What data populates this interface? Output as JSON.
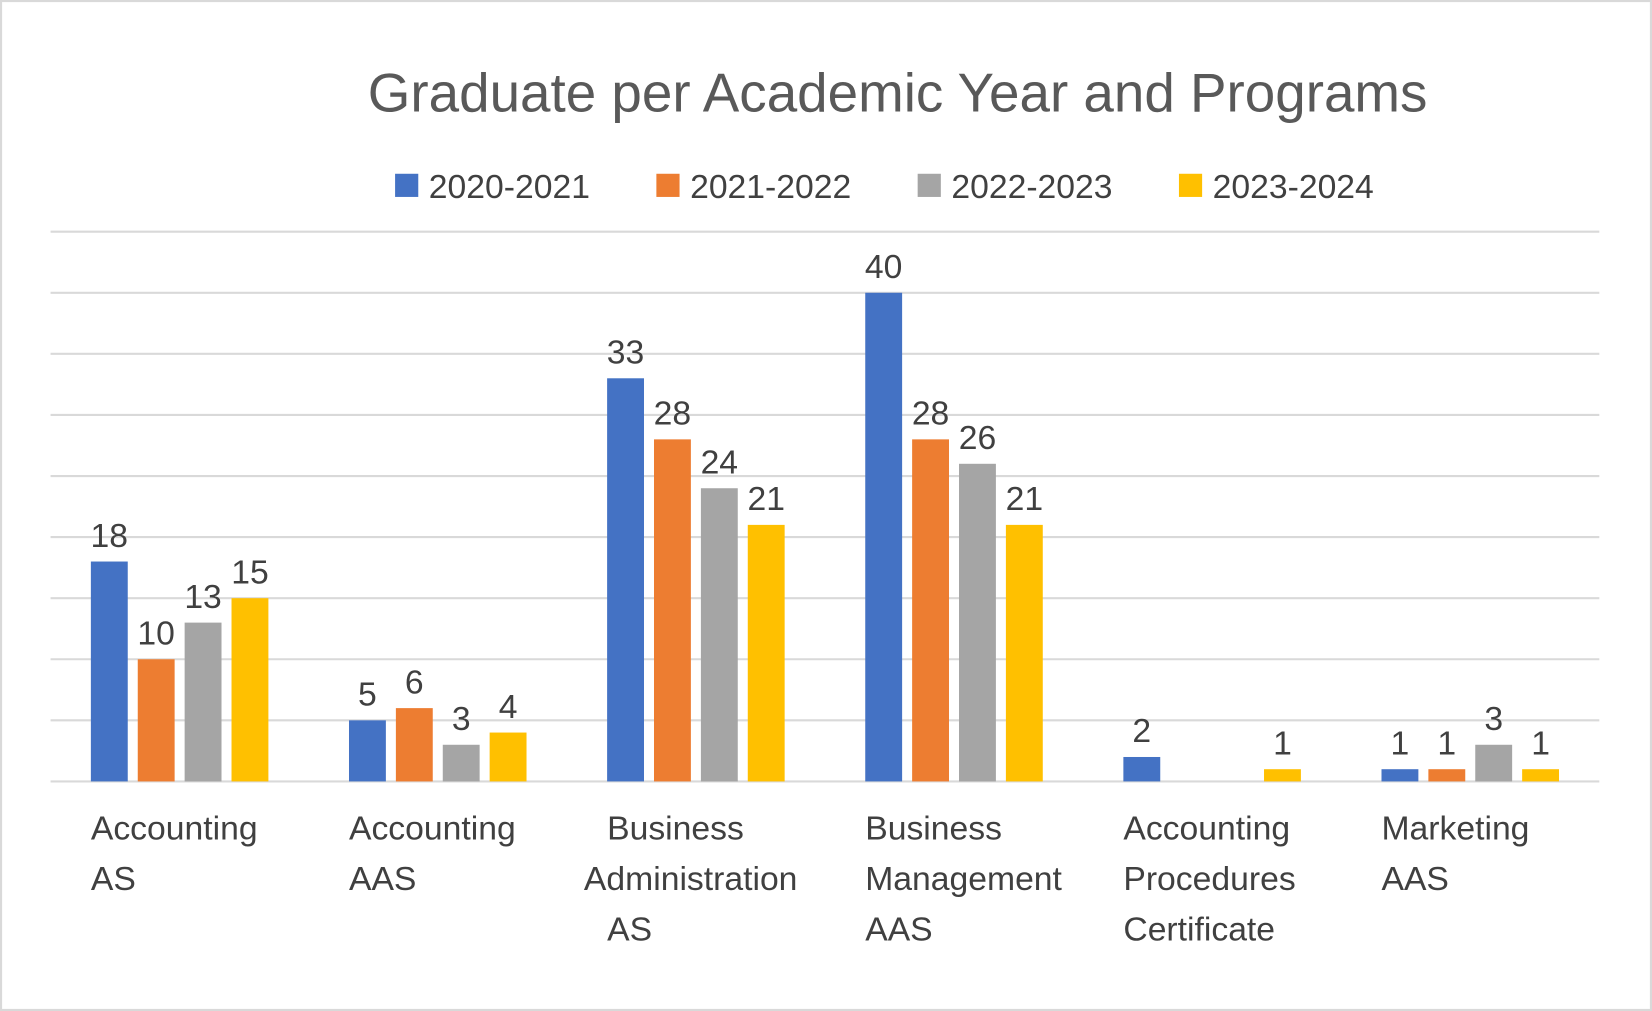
{
  "chart_data": {
    "type": "bar",
    "title": "Graduate per Academic Year and Programs",
    "xlabel": "",
    "ylabel": "",
    "ylim": [
      0,
      45
    ],
    "grid": true,
    "grid_step": 5,
    "legend_position": "top",
    "categories": [
      [
        "Accounting",
        "AS"
      ],
      [
        "Accounting",
        "AAS"
      ],
      [
        "Business",
        "Administration",
        "AS"
      ],
      [
        "Business",
        "Management",
        "AAS"
      ],
      [
        "Accounting",
        "Procedures",
        "Certificate"
      ],
      [
        "Marketing",
        "AAS"
      ]
    ],
    "series": [
      {
        "name": "2020-2021",
        "color": "#4472C4",
        "values": [
          18,
          5,
          33,
          40,
          2,
          1
        ]
      },
      {
        "name": "2021-2022",
        "color": "#ED7D31",
        "values": [
          10,
          6,
          28,
          28,
          null,
          1
        ]
      },
      {
        "name": "2022-2023",
        "color": "#A5A5A5",
        "values": [
          13,
          3,
          24,
          26,
          null,
          3
        ]
      },
      {
        "name": "2023-2024",
        "color": "#FFC000",
        "values": [
          15,
          4,
          21,
          21,
          1,
          1
        ]
      }
    ]
  }
}
